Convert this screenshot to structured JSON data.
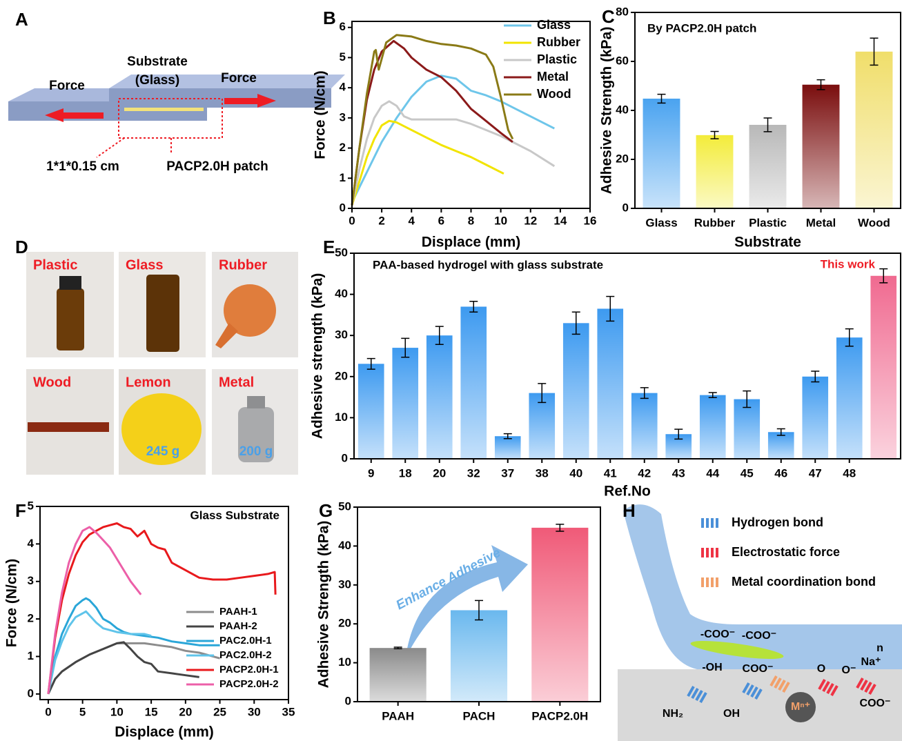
{
  "panel_labels": [
    "A",
    "B",
    "C",
    "D",
    "E",
    "F",
    "G",
    "H"
  ],
  "panel_a": {
    "left_force": "Force",
    "substrate": "Substrate",
    "substrate_note": "(Glass)",
    "right_force": "Force",
    "size": "1*1*0.15 cm",
    "patch": "PACP2.0H patch"
  },
  "panel_d": {
    "photos": [
      {
        "label": "Plastic"
      },
      {
        "label": "Glass"
      },
      {
        "label": "Rubber"
      },
      {
        "label": "Wood"
      },
      {
        "label": "Lemon",
        "mass": "245 g"
      },
      {
        "label": "Metal",
        "mass": "200 g"
      }
    ]
  },
  "panel_h": {
    "legend": [
      "Hydrogen bond",
      "Electrostatic force",
      "Metal coordination bond"
    ],
    "groups": [
      "-COO⁻",
      "-COO⁻",
      "-OH",
      "COO⁻",
      "n",
      "Na⁺",
      "O",
      "O⁻",
      "NH₂",
      "OH",
      "Mⁿ⁺",
      "COO⁻"
    ]
  },
  "chart_data": [
    {
      "type": "line",
      "xlabel": "Displace (mm)",
      "ylabel": "Force (N/cm)",
      "xlim": [
        0,
        16
      ],
      "xticks": [
        0,
        2,
        4,
        6,
        8,
        10,
        12,
        14,
        16
      ],
      "ylim": [
        0,
        6.2
      ],
      "yticks": [
        0,
        1,
        2,
        3,
        4,
        5,
        6
      ],
      "legend": "upper right",
      "series": [
        {
          "name": "Glass",
          "color": "#6ec6ea",
          "x": [
            0,
            1,
            2,
            3,
            4,
            5,
            6,
            7,
            8,
            9,
            10,
            11,
            12,
            13.6
          ],
          "values": [
            0.2,
            1.2,
            2.2,
            3.0,
            3.7,
            4.2,
            4.4,
            4.3,
            3.9,
            3.75,
            3.55,
            3.3,
            3.05,
            2.65
          ]
        },
        {
          "name": "Rubber",
          "color": "#f2e400",
          "x": [
            0,
            0.5,
            1,
            1.5,
            2,
            2.5,
            3,
            4,
            5,
            6,
            7,
            8,
            9,
            10.2
          ],
          "values": [
            0.1,
            0.9,
            1.7,
            2.3,
            2.75,
            2.9,
            2.85,
            2.6,
            2.35,
            2.1,
            1.9,
            1.7,
            1.45,
            1.15
          ]
        },
        {
          "name": "Plastic",
          "color": "#c8c8c8",
          "x": [
            0,
            0.5,
            1,
            1.5,
            2,
            2.5,
            3,
            3.5,
            4,
            5,
            6,
            7,
            8,
            9,
            10,
            11,
            12,
            13.6
          ],
          "values": [
            0.1,
            1.3,
            2.3,
            3.0,
            3.4,
            3.55,
            3.4,
            3.05,
            2.95,
            2.95,
            2.95,
            2.95,
            2.8,
            2.6,
            2.4,
            2.15,
            1.9,
            1.4
          ]
        },
        {
          "name": "Metal",
          "color": "#8b1a1a",
          "x": [
            0,
            0.5,
            1,
            1.5,
            2,
            2.8,
            3.5,
            4,
            5,
            6,
            7,
            8,
            9,
            10,
            10.8
          ],
          "values": [
            0.1,
            2.0,
            3.6,
            4.6,
            5.2,
            5.55,
            5.3,
            5.0,
            4.6,
            4.35,
            3.9,
            3.3,
            2.9,
            2.5,
            2.2
          ]
        },
        {
          "name": "Wood",
          "color": "#8a7a16",
          "x": [
            0,
            0.5,
            1,
            1.5,
            1.6,
            1.8,
            2.3,
            3,
            4,
            5,
            6,
            7,
            8,
            9,
            9.5,
            10,
            10.5,
            10.8
          ],
          "values": [
            0.1,
            2.0,
            3.8,
            5.2,
            5.25,
            4.6,
            5.5,
            5.75,
            5.7,
            5.55,
            5.45,
            5.4,
            5.3,
            5.1,
            4.7,
            3.7,
            2.6,
            2.3
          ]
        }
      ]
    },
    {
      "type": "bar",
      "annotation": "By PACP2.0H patch",
      "xlabel": "Substrate",
      "ylabel": "Adhesive Strength (kPa)",
      "categories": [
        "Glass",
        "Rubber",
        "Plastic",
        "Metal",
        "Wood"
      ],
      "values": [
        44.8,
        29.9,
        34.1,
        50.5,
        64
      ],
      "errors": [
        1.8,
        1.5,
        2.8,
        2,
        5.5
      ],
      "colors": [
        "#4aa3f0",
        "#f3ec3a",
        "#b8b8b8",
        "#7a0d0d",
        "#f0de6a"
      ],
      "ylim": [
        0,
        80
      ],
      "yticks": [
        0,
        20,
        40,
        60,
        80
      ]
    },
    {
      "type": "bar",
      "annotation": "PAA-based hydrogel with glass substrate",
      "highlight_label": "This work",
      "xlabel": "Ref.No",
      "ylabel": "Adhesive strength (kPa)",
      "categories": [
        "9",
        "18",
        "20",
        "32",
        "37",
        "38",
        "40",
        "41",
        "42",
        "43",
        "44",
        "45",
        "46",
        "47",
        "48",
        null
      ],
      "values": [
        23.1,
        27,
        30,
        37,
        5.5,
        16,
        33,
        36.5,
        16,
        6,
        15.5,
        14.5,
        6.5,
        20,
        29.5,
        44.5
      ],
      "errors": [
        1.3,
        2.3,
        2.2,
        1.3,
        0.6,
        2.3,
        2.7,
        3,
        1.3,
        1.2,
        0.6,
        2,
        0.8,
        1.3,
        2.1,
        1.7
      ],
      "colors": [
        "#3d9af0",
        "#3d9af0",
        "#3d9af0",
        "#3d9af0",
        "#3d9af0",
        "#3d9af0",
        "#3d9af0",
        "#3d9af0",
        "#3d9af0",
        "#3d9af0",
        "#3d9af0",
        "#3d9af0",
        "#3d9af0",
        "#3d9af0",
        "#3d9af0",
        "#f06a90"
      ],
      "ylim": [
        0,
        50
      ],
      "yticks": [
        0,
        10,
        20,
        30,
        40,
        50
      ]
    },
    {
      "type": "line",
      "annotation": "Glass Substrate",
      "xlabel": "Displace (mm)",
      "ylabel": "Force (N/cm)",
      "xlim": [
        -1.2,
        35
      ],
      "xticks": [
        0,
        5,
        10,
        15,
        20,
        25,
        30,
        35
      ],
      "ylim": [
        -0.15,
        5
      ],
      "yticks": [
        0,
        1,
        2,
        3,
        4,
        5
      ],
      "legend": "lower right",
      "series": [
        {
          "name": "PAAH-1",
          "color": "#8c8c8c",
          "x": [
            0,
            1,
            2,
            4,
            6,
            8,
            10,
            12,
            14,
            16,
            18,
            20,
            22,
            25
          ],
          "values": [
            0,
            0.4,
            0.6,
            0.85,
            1.05,
            1.2,
            1.35,
            1.35,
            1.35,
            1.3,
            1.25,
            1.15,
            1.1,
            0.95
          ]
        },
        {
          "name": "PAAH-2",
          "color": "#444444",
          "x": [
            0,
            1,
            2,
            4,
            6,
            8,
            10,
            11,
            12,
            13,
            14,
            15,
            16,
            18,
            20,
            22
          ],
          "values": [
            0,
            0.4,
            0.6,
            0.85,
            1.05,
            1.2,
            1.35,
            1.38,
            1.2,
            1.0,
            0.85,
            0.8,
            0.6,
            0.55,
            0.5,
            0.45
          ]
        },
        {
          "name": "PAC2.0H-1",
          "color": "#2aa6d8",
          "x": [
            0,
            1,
            2,
            3,
            4,
            5,
            5.5,
            6,
            7,
            8,
            9,
            10,
            11,
            12,
            14,
            16,
            18,
            20,
            22,
            25
          ],
          "values": [
            0,
            1.0,
            1.6,
            2.0,
            2.35,
            2.5,
            2.55,
            2.5,
            2.3,
            2.0,
            1.9,
            1.75,
            1.65,
            1.6,
            1.55,
            1.5,
            1.4,
            1.35,
            1.3,
            1.3
          ]
        },
        {
          "name": "PAC2.0H-2",
          "color": "#5fc4ea",
          "x": [
            0,
            1,
            2,
            3,
            4,
            5,
            5.5,
            6,
            7,
            8,
            10,
            12,
            14,
            15
          ],
          "values": [
            0,
            0.9,
            1.4,
            1.8,
            2.05,
            2.15,
            2.2,
            2.1,
            1.9,
            1.75,
            1.65,
            1.6,
            1.6,
            1.55
          ]
        },
        {
          "name": "PACP2.0H-1",
          "color": "#e8191c",
          "x": [
            0,
            1,
            2,
            3,
            4,
            5,
            6,
            7,
            8,
            9,
            10,
            11,
            12,
            13,
            14,
            15,
            16,
            17,
            18,
            20,
            22,
            24,
            26,
            28,
            30,
            32,
            33,
            33.1
          ],
          "values": [
            0,
            1.5,
            2.5,
            3.2,
            3.7,
            4.05,
            4.25,
            4.35,
            4.45,
            4.5,
            4.55,
            4.45,
            4.4,
            4.2,
            4.35,
            4.0,
            3.9,
            3.85,
            3.5,
            3.3,
            3.1,
            3.05,
            3.05,
            3.1,
            3.15,
            3.2,
            3.25,
            2.65
          ]
        },
        {
          "name": "PACP2.0H-2",
          "color": "#ec5fa8",
          "x": [
            0,
            1,
            2,
            3,
            4,
            5,
            6,
            7,
            8,
            9,
            10,
            11,
            12,
            13.5
          ],
          "values": [
            0,
            1.6,
            2.7,
            3.5,
            4.0,
            4.35,
            4.45,
            4.3,
            4.1,
            3.9,
            3.6,
            3.3,
            3.0,
            2.65
          ]
        }
      ]
    },
    {
      "type": "bar",
      "annotation": "Enhance Adhesive",
      "ylabel": "Adhesive Strength (kPa)",
      "categories": [
        "PAAH",
        "PACH",
        "PACP2.0H"
      ],
      "values": [
        13.8,
        23.5,
        44.7
      ],
      "errors": [
        0.2,
        2.5,
        0.9
      ],
      "colors": [
        "#8a8a8a",
        "#6ab8ee",
        "#f05a78"
      ],
      "ylim": [
        0,
        50
      ],
      "yticks": [
        0,
        10,
        20,
        30,
        40,
        50
      ]
    }
  ]
}
